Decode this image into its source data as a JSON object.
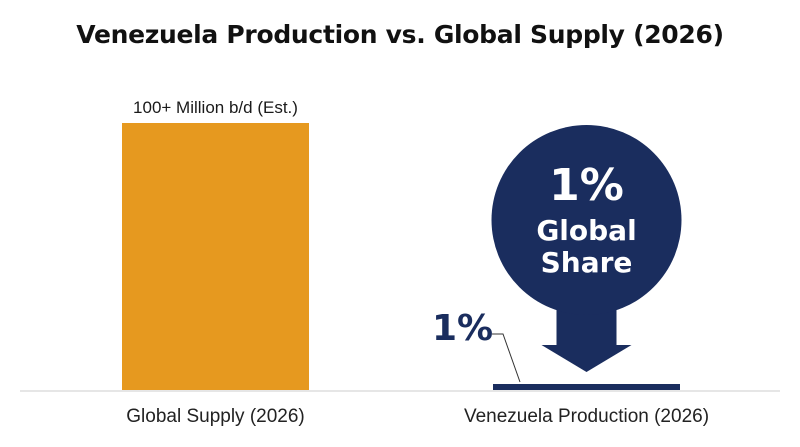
{
  "chart_data": {
    "type": "bar",
    "title": "Venezuela Production vs. Global Supply (2026)",
    "categories": [
      "Global Supply (2026)",
      "Venezuela Production (2026)"
    ],
    "values": [
      100,
      1
    ],
    "unit": "%",
    "data_labels": [
      "100+ Million b/d (Est.)",
      "1%"
    ],
    "callout": {
      "big": "1%",
      "line1": "Global",
      "line2": "Share"
    },
    "colors": {
      "global": "#e6991f",
      "venezuela": "#1a2d5e",
      "baseline": "#cccccc"
    },
    "grid": false,
    "legend": "none"
  }
}
